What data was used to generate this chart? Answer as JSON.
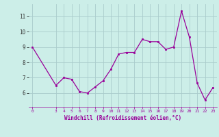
{
  "x": [
    0,
    3,
    4,
    5,
    6,
    7,
    8,
    9,
    10,
    11,
    12,
    13,
    14,
    15,
    16,
    17,
    18,
    19,
    20,
    21,
    22,
    23
  ],
  "y": [
    9.0,
    6.5,
    7.0,
    6.9,
    6.1,
    6.0,
    6.4,
    6.8,
    7.55,
    8.55,
    8.65,
    8.65,
    9.5,
    9.35,
    9.35,
    8.85,
    9.0,
    11.35,
    9.65,
    6.65,
    5.55,
    6.35
  ],
  "line_color": "#990099",
  "marker_color": "#990099",
  "bg_color": "#cceee8",
  "grid_color": "#aacccc",
  "xlabel": "Windchill (Refroidissement éolien,°C)",
  "xlabel_color": "#990099",
  "yticks": [
    6,
    7,
    8,
    9,
    10,
    11
  ],
  "xticks": [
    0,
    3,
    4,
    5,
    6,
    7,
    8,
    9,
    10,
    11,
    12,
    13,
    14,
    15,
    16,
    17,
    18,
    19,
    20,
    21,
    22,
    23
  ],
  "ylim": [
    5.1,
    11.8
  ],
  "xlim": [
    -0.5,
    23.5
  ]
}
